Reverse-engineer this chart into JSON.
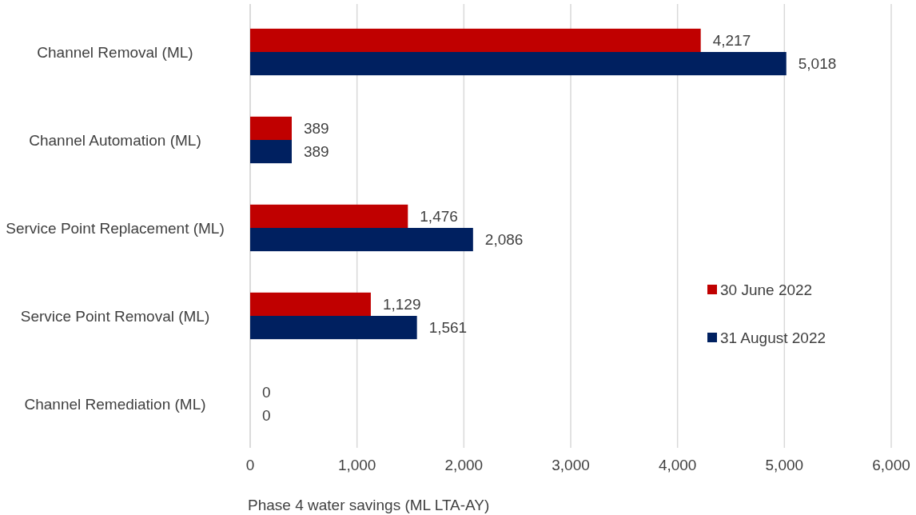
{
  "chart_data": {
    "type": "bar",
    "orientation": "horizontal",
    "xlabel": "Phase 4 water savings (ML LTA-AY)",
    "categories": [
      "Channel Removal (ML)",
      "Channel Automation (ML)",
      "Service Point Replacement (ML)",
      "Service Point Removal (ML)",
      "Channel Remediation (ML)"
    ],
    "series": [
      {
        "name": "30 June 2022",
        "color": "#c00000",
        "values": [
          4217,
          389,
          1476,
          1129,
          0
        ],
        "value_labels": [
          "4,217",
          "389",
          "1,476",
          "1,129",
          "0"
        ]
      },
      {
        "name": "31 August 2022",
        "color": "#002060",
        "values": [
          5018,
          389,
          2086,
          1561,
          0
        ],
        "value_labels": [
          "5,018",
          "389",
          "2,086",
          "1,561",
          "0"
        ]
      }
    ],
    "xlim": [
      0,
      6000
    ],
    "xticks": [
      0,
      {
        "value": 1000,
        "label": "1,000"
      },
      {
        "value": 2000,
        "label": "2,000"
      },
      {
        "value": 3000,
        "label": "3,000"
      },
      {
        "value": 4000,
        "label": "4,000"
      },
      {
        "value": 5000,
        "label": "5,000"
      },
      {
        "value": 6000,
        "label": "6,000"
      }
    ],
    "grid": "x",
    "legend": "right"
  }
}
